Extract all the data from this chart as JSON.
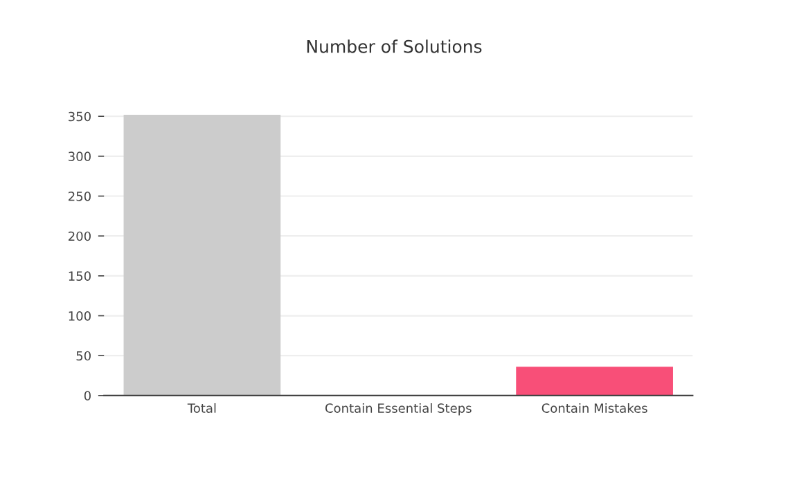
{
  "chart_data": {
    "type": "bar",
    "title": "Number of Solutions",
    "categories": [
      "Total",
      "Contain Essential Steps",
      "Contain Mistakes"
    ],
    "values": [
      352,
      0,
      36
    ],
    "colors": [
      "#cccccc",
      null,
      "#f84f78"
    ],
    "ylim": [
      0,
      352
    ],
    "yticks": [
      0,
      50,
      100,
      150,
      200,
      250,
      300,
      350
    ],
    "grid": "y",
    "legend": false
  }
}
